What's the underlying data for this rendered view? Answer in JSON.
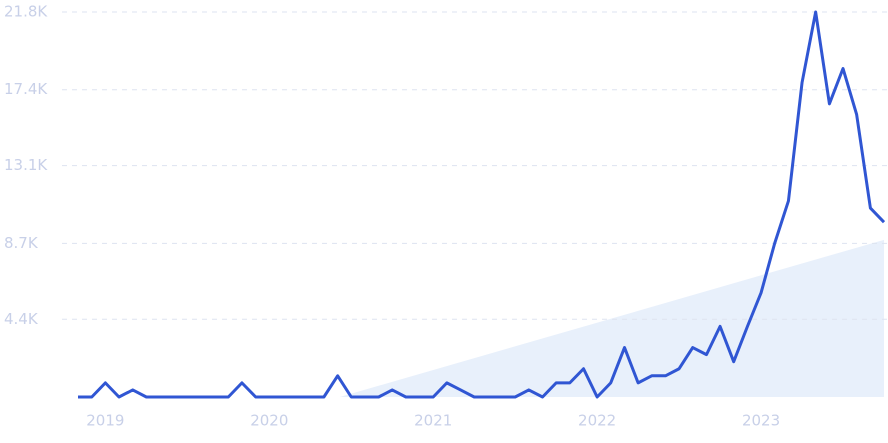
{
  "chart_data": {
    "type": "line",
    "x": [
      2018.833,
      2018.917,
      2019.0,
      2019.083,
      2019.167,
      2019.25,
      2019.333,
      2019.417,
      2019.5,
      2019.583,
      2019.667,
      2019.75,
      2019.833,
      2019.917,
      2020.0,
      2020.083,
      2020.167,
      2020.25,
      2020.333,
      2020.417,
      2020.5,
      2020.583,
      2020.667,
      2020.75,
      2020.833,
      2020.917,
      2021.0,
      2021.083,
      2021.167,
      2021.25,
      2021.333,
      2021.417,
      2021.5,
      2021.583,
      2021.667,
      2021.75,
      2021.833,
      2021.917,
      2022.0,
      2022.083,
      2022.167,
      2022.25,
      2022.333,
      2022.417,
      2022.5,
      2022.583,
      2022.667,
      2022.75,
      2022.833,
      2022.917,
      2023.0,
      2023.083,
      2023.167,
      2023.25,
      2023.333,
      2023.417,
      2023.5,
      2023.583,
      2023.667,
      2023.75
    ],
    "series": [
      {
        "color": "#3056d3",
        "values": [
          0,
          0,
          800,
          0,
          400,
          0,
          0,
          0,
          0,
          0,
          0,
          0,
          800,
          0,
          0,
          0,
          0,
          0,
          0,
          1200,
          0,
          0,
          0,
          400,
          0,
          0,
          0,
          800,
          400,
          0,
          0,
          0,
          0,
          400,
          0,
          800,
          800,
          1600,
          0,
          800,
          2800,
          800,
          1200,
          1200,
          1600,
          2800,
          2400,
          4000,
          2000,
          4000,
          5900,
          8700,
          11100,
          17800,
          21800,
          16600,
          18600,
          16000,
          10700,
          9900
        ]
      }
    ],
    "trend": {
      "x": [
        2020.43,
        2023.75
      ],
      "values": [
        0,
        8900
      ],
      "color": "#e8f0fb"
    },
    "xlim": [
      2018.833,
      2023.75
    ],
    "xticks": [
      2019,
      2020,
      2021,
      2022,
      2023
    ],
    "ylim": [
      0,
      21800
    ],
    "yticks": [
      {
        "value": 4400,
        "label": "4.4K"
      },
      {
        "value": 8700,
        "label": "8.7K"
      },
      {
        "value": 13100,
        "label": "13.1K"
      },
      {
        "value": 17400,
        "label": "17.4K"
      },
      {
        "value": 21800,
        "label": "21.8K"
      }
    ],
    "grid": true
  }
}
